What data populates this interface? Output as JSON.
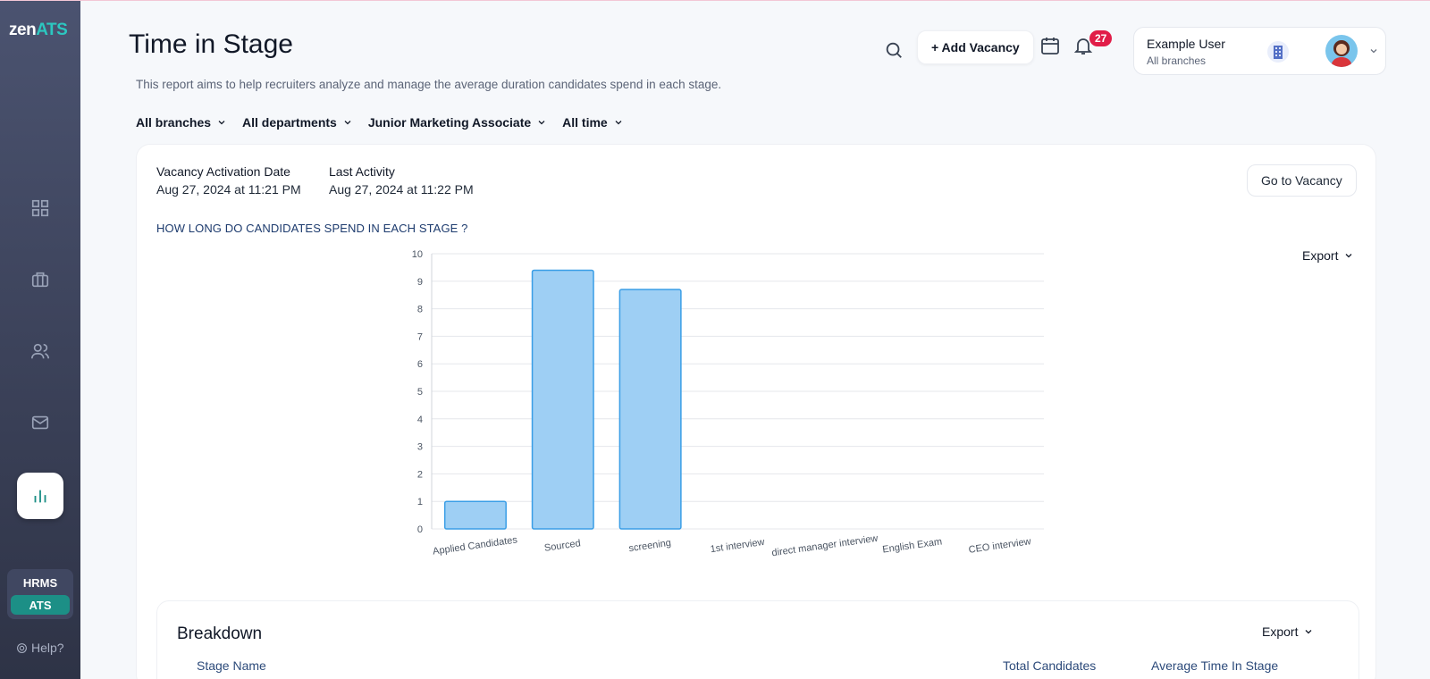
{
  "sidebar": {
    "logo_zen": "zen",
    "logo_ats": "ATS",
    "nav": [
      {
        "icon": "dashboard-grid-icon"
      },
      {
        "icon": "briefcase-icon"
      },
      {
        "icon": "users-icon"
      },
      {
        "icon": "mail-icon"
      },
      {
        "icon": "bar-chart-icon",
        "active": true
      }
    ],
    "switch": [
      "HRMS",
      "ATS"
    ],
    "help": "Help?"
  },
  "header": {
    "title": "Time in Stage",
    "subtitle": "This report aims to help recruiters analyze and manage the average duration candidates spend in each stage.",
    "add_vacancy": "+ Add Vacancy",
    "notifications": "27",
    "user": {
      "name": "Example User",
      "branch": "All branches"
    }
  },
  "filters": [
    "All branches",
    "All departments",
    "Junior Marketing Associate",
    "All time"
  ],
  "card": {
    "activation_label": "Vacancy Activation Date",
    "activation_value": "Aug 27, 2024 at 11:21 PM",
    "last_label": "Last Activity",
    "last_value": "Aug 27, 2024 at 11:22 PM",
    "go_to_vacancy": "Go to Vacancy",
    "question": "HOW LONG DO CANDIDATES SPEND IN EACH STAGE ?",
    "export": "Export"
  },
  "chart_data": {
    "type": "bar",
    "categories": [
      "Applied Candidates",
      "Sourced",
      "screening",
      "1st interview",
      "direct manager interview",
      "English Exam",
      "CEO interview"
    ],
    "values": [
      1,
      9.4,
      8.7,
      0,
      0,
      0,
      0
    ],
    "ylim": [
      0,
      10
    ],
    "yticks": [
      0,
      1,
      2,
      3,
      4,
      5,
      6,
      7,
      8,
      9,
      10
    ],
    "grid": true,
    "bar_color": "#9ecff4",
    "bar_stroke": "#3a9ee6"
  },
  "breakdown": {
    "title": "Breakdown",
    "export": "Export",
    "columns": [
      "Stage Name",
      "Total Candidates",
      "Average Time In Stage"
    ]
  },
  "colors": {
    "accent": "#1c8f86",
    "brand_ats": "#2cc7c0",
    "badge": "#e11d48"
  }
}
